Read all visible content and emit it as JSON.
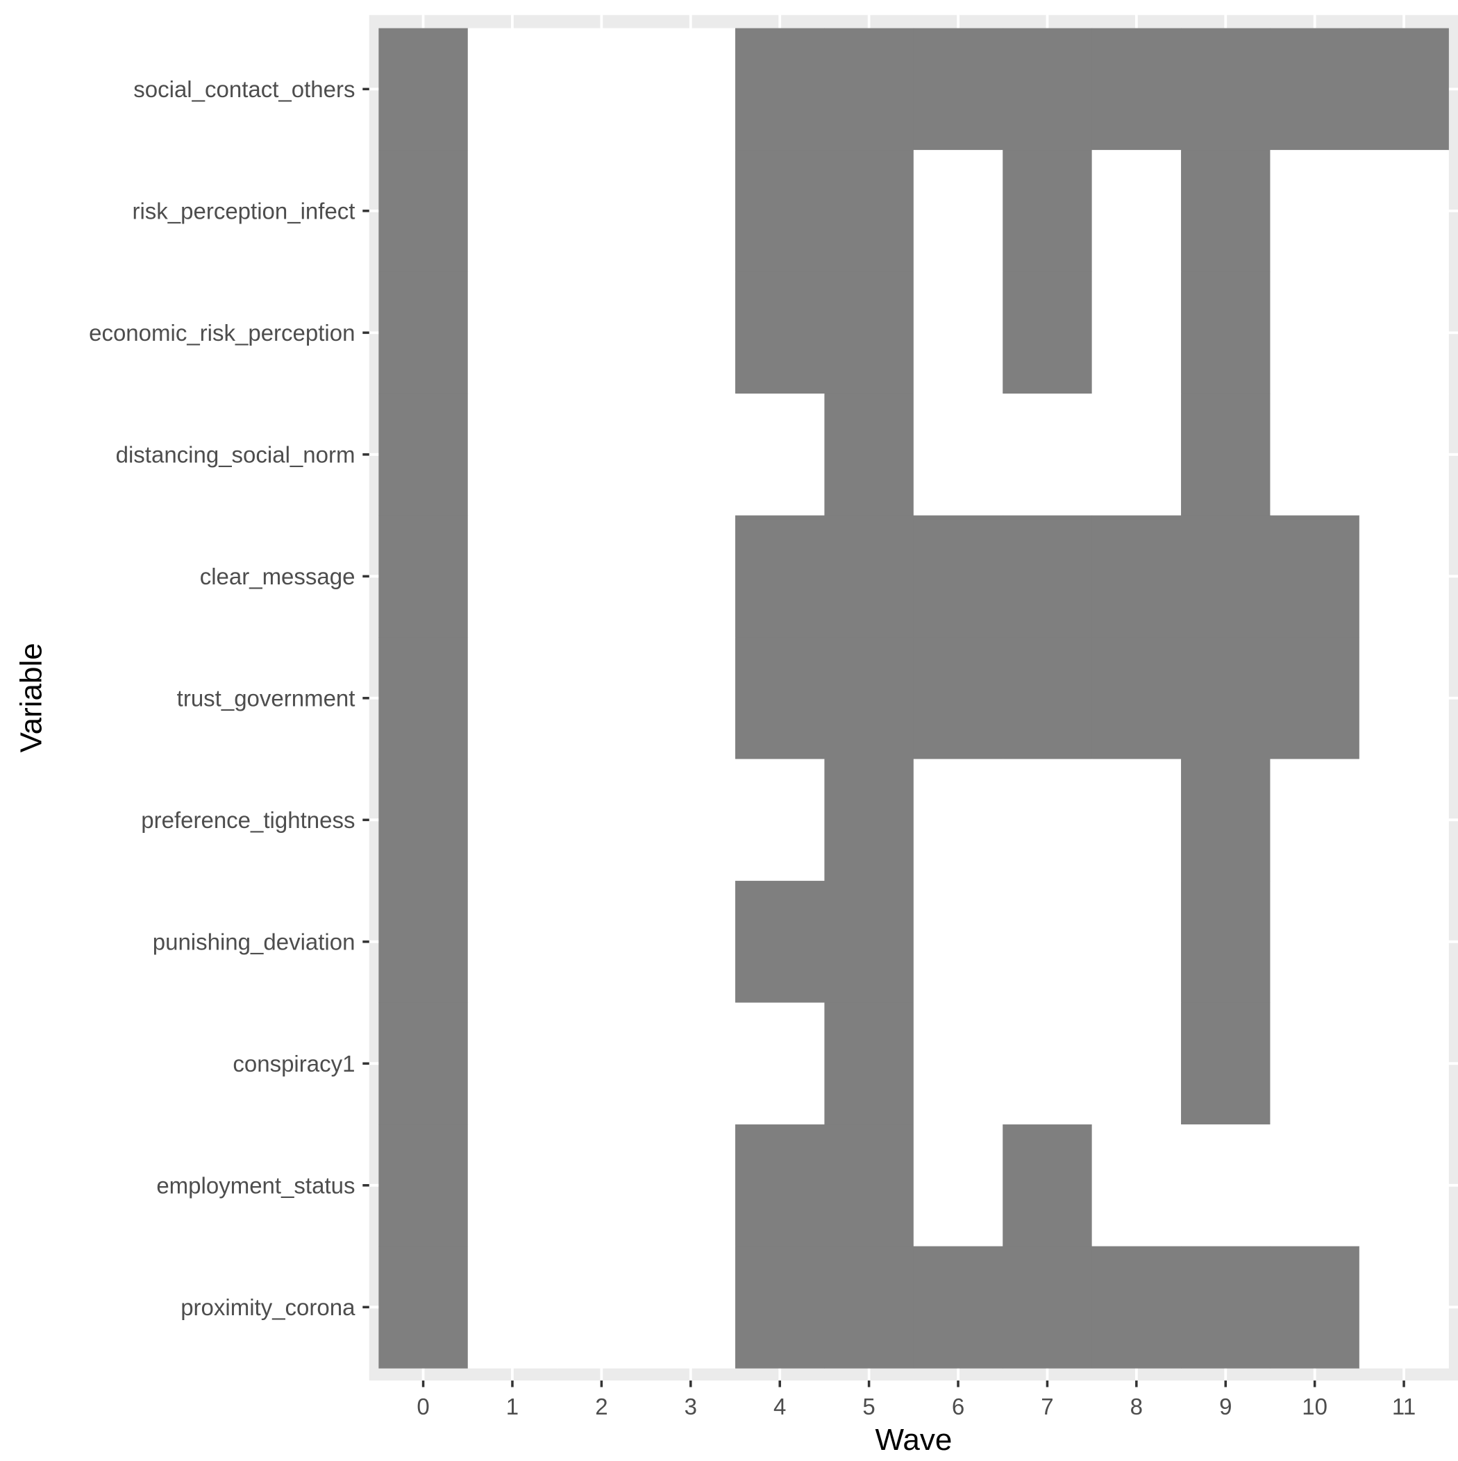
{
  "chart_data": {
    "type": "heatmap",
    "title": "",
    "xlabel": "Wave",
    "ylabel": "Variable",
    "x": [
      0,
      1,
      2,
      3,
      4,
      5,
      6,
      7,
      8,
      9,
      10,
      11
    ],
    "xlim": [
      -0.6,
      11.5
    ],
    "grid": true,
    "legend": "none",
    "colors": {
      "panel_background": "#ebebeb",
      "grid": "#ffffff",
      "present": "#7f7f7f",
      "absent": "#ffffff",
      "tick_text": "#4d4d4d",
      "title_text": "#000000"
    },
    "variables": [
      "social_contact_others",
      "risk_perception_infect",
      "economic_risk_perception",
      "distancing_social_norm",
      "clear_message",
      "trust_government",
      "preference_tightness",
      "punishing_deviation",
      "conspiracy1",
      "employment_status",
      "proximity_corona"
    ],
    "matrix": [
      [
        1,
        0,
        0,
        0,
        1,
        1,
        1,
        1,
        1,
        1,
        1,
        1
      ],
      [
        1,
        0,
        0,
        0,
        1,
        1,
        0,
        1,
        0,
        1,
        0,
        0
      ],
      [
        1,
        0,
        0,
        0,
        1,
        1,
        0,
        1,
        0,
        1,
        0,
        0
      ],
      [
        1,
        0,
        0,
        0,
        0,
        1,
        0,
        0,
        0,
        1,
        0,
        0
      ],
      [
        1,
        0,
        0,
        0,
        1,
        1,
        1,
        1,
        1,
        1,
        1,
        0
      ],
      [
        1,
        0,
        0,
        0,
        1,
        1,
        1,
        1,
        1,
        1,
        1,
        0
      ],
      [
        1,
        0,
        0,
        0,
        0,
        1,
        0,
        0,
        0,
        1,
        0,
        0
      ],
      [
        1,
        0,
        0,
        0,
        1,
        1,
        0,
        0,
        0,
        1,
        0,
        0
      ],
      [
        1,
        0,
        0,
        0,
        0,
        1,
        0,
        0,
        0,
        1,
        0,
        0
      ],
      [
        1,
        0,
        0,
        0,
        1,
        1,
        0,
        1,
        0,
        0,
        0,
        0
      ],
      [
        1,
        0,
        0,
        0,
        1,
        1,
        1,
        1,
        1,
        1,
        1,
        0
      ]
    ]
  }
}
